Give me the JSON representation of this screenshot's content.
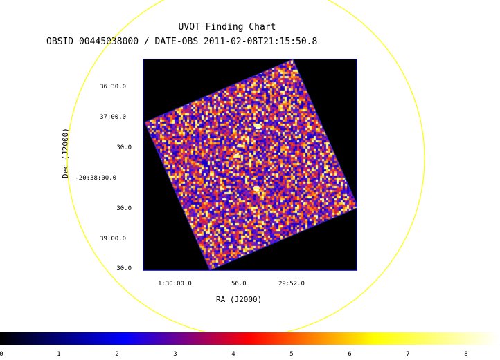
{
  "title": "UVOT Finding Chart",
  "subtitle": "OBSID 00445038000 / DATE-OBS 2011-02-08T21:15:50.8",
  "axes": {
    "xlabel": "RA (J2000)",
    "ylabel": "Dec (J2000)",
    "xticks": [
      "1:30:00.0",
      "56.0",
      "29:52.0"
    ],
    "yticks": [
      "36:30.0",
      "37:00.0",
      "30.0",
      "-20:38:00.0",
      "30.0",
      "39:00.0",
      "30.0"
    ]
  },
  "colorbar": {
    "ticks": [
      "0",
      "1",
      "2",
      "3",
      "4",
      "5",
      "6",
      "7",
      "8"
    ],
    "colors": [
      "#000000",
      "#0000ff",
      "#ff0000",
      "#ffff00",
      "#ffffff"
    ]
  },
  "colors": {
    "circle": "#ffff00",
    "frame": "#3030ff",
    "background": "#000000"
  }
}
